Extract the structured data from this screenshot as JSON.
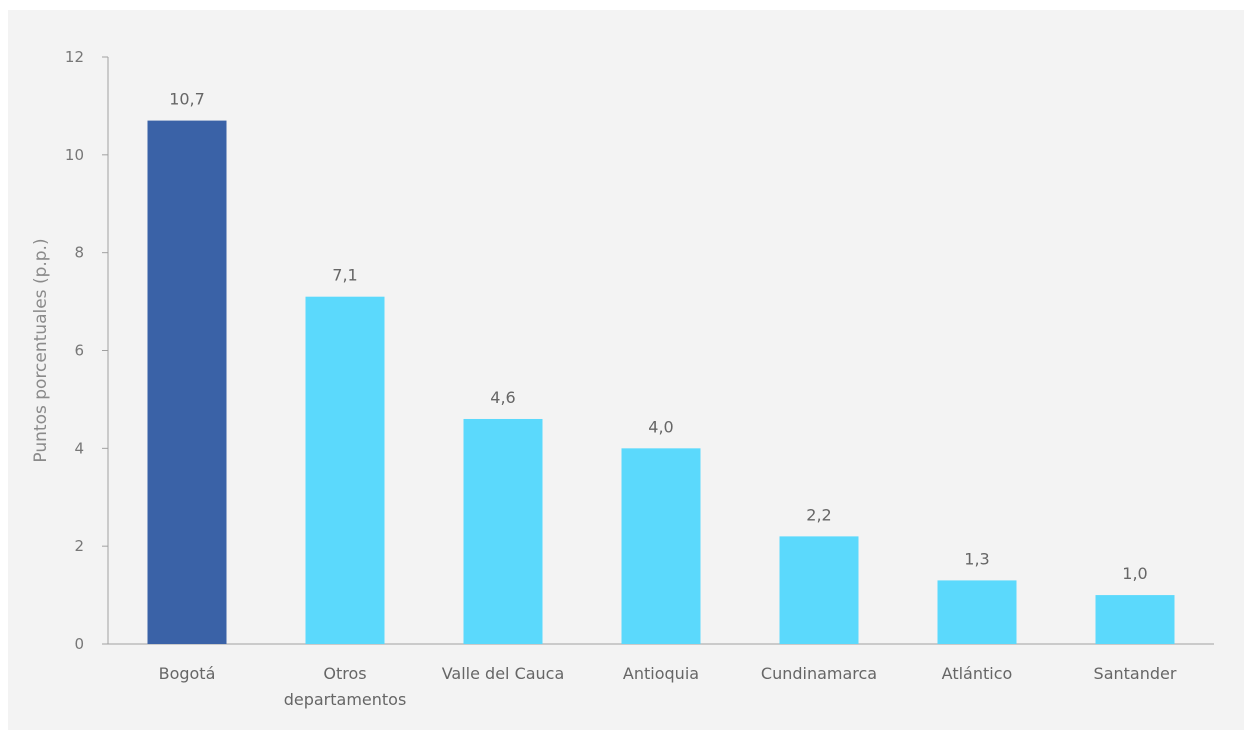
{
  "chart_data": {
    "type": "bar",
    "title": "",
    "xlabel": "",
    "ylabel": "Puntos porcentuales (p.p.)",
    "ylim": [
      0,
      12
    ],
    "yticks": [
      "0",
      "2",
      "4",
      "6",
      "8",
      "10",
      "12"
    ],
    "grid": false,
    "categories": [
      [
        "Bogotá"
      ],
      [
        "Otros",
        "departamentos"
      ],
      [
        "Valle del Cauca"
      ],
      [
        "Antioquia"
      ],
      [
        "Cundinamarca"
      ],
      [
        "Atlántico"
      ],
      [
        "Santander"
      ]
    ],
    "values": [
      10.7,
      7.1,
      4.6,
      4.0,
      2.2,
      1.3,
      1.0
    ],
    "data_labels": [
      "10,7",
      "7,1",
      "4,6",
      "4,0",
      "2,2",
      "1,3",
      "1,0"
    ],
    "colors": [
      "#3a62a7",
      "#5bd9fc",
      "#5bd9fc",
      "#5bd9fc",
      "#5bd9fc",
      "#5bd9fc",
      "#5bd9fc"
    ]
  }
}
